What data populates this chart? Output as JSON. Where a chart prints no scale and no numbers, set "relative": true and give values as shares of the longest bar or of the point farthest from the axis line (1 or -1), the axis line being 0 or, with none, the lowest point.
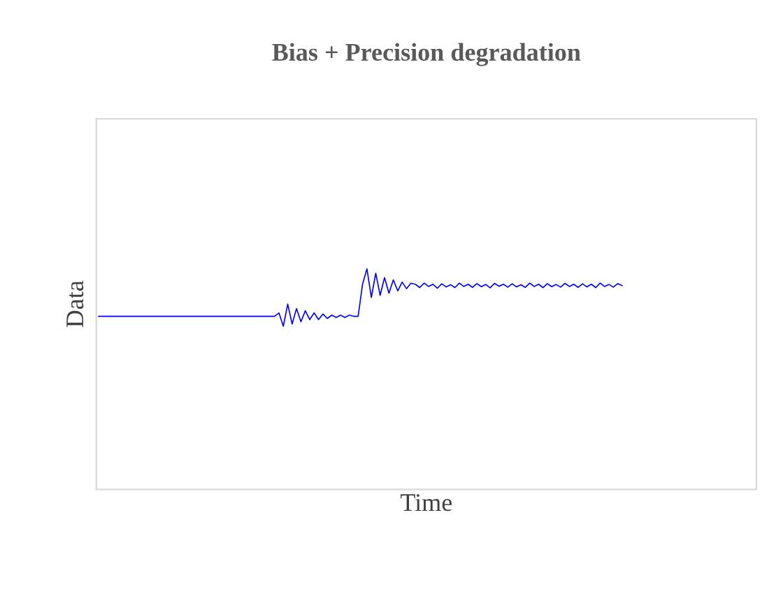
{
  "chart_data": {
    "type": "line",
    "title": "Bias + Precision degradation",
    "xlabel": "Time",
    "ylabel": "Data",
    "relative": true,
    "grid": false,
    "legend": false,
    "marker": "none",
    "line_style": "solid",
    "categories": [
      null,
      null,
      null,
      null,
      null,
      null,
      null,
      null,
      null,
      null,
      null,
      null,
      null,
      null,
      null,
      null,
      null,
      null,
      null,
      null,
      null,
      null,
      null,
      null,
      null,
      null,
      null,
      null,
      null,
      null,
      null,
      null,
      null,
      null,
      null,
      null,
      null,
      null,
      null,
      null,
      null,
      null,
      null,
      null,
      null,
      null,
      null,
      null,
      null,
      null,
      null,
      null,
      null,
      null,
      null,
      null,
      null,
      null,
      null,
      null,
      null,
      null,
      null,
      null,
      null,
      null,
      null,
      null,
      null,
      null,
      null,
      null,
      null,
      null,
      null,
      null,
      null,
      null,
      null,
      null,
      null,
      null,
      null,
      null,
      null,
      null,
      null,
      null,
      null,
      null,
      null,
      null,
      null,
      null,
      null,
      null,
      null,
      null,
      null,
      null,
      null,
      null,
      null,
      null,
      null,
      null,
      null,
      null,
      null,
      null,
      null,
      null,
      null,
      null,
      null,
      null,
      null,
      null,
      null,
      null,
      null,
      null,
      null,
      null,
      null,
      null,
      null,
      null,
      null,
      null,
      null,
      null,
      null,
      null,
      null,
      null,
      null,
      null,
      null,
      null,
      null,
      null,
      null,
      null,
      null,
      null,
      null,
      null,
      null,
      null
    ],
    "series": [
      {
        "color": "#0000ff",
        "values": [
          0.785,
          0.785,
          0.785,
          0.785,
          0.785,
          0.785,
          0.785,
          0.785,
          0.785,
          0.785,
          0.785,
          0.785,
          0.785,
          0.785,
          0.785,
          0.785,
          0.785,
          0.785,
          0.785,
          0.785,
          0.785,
          0.785,
          0.785,
          0.785,
          0.785,
          0.785,
          0.785,
          0.785,
          0.785,
          0.785,
          0.785,
          0.785,
          0.785,
          0.785,
          0.785,
          0.785,
          0.785,
          0.785,
          0.785,
          0.785,
          0.785,
          0.8,
          0.74,
          0.84,
          0.75,
          0.82,
          0.76,
          0.81,
          0.77,
          0.8,
          0.77,
          0.795,
          0.775,
          0.79,
          0.78,
          0.79,
          0.78,
          0.79,
          0.785,
          0.785,
          0.93,
          1,
          0.87,
          0.98,
          0.88,
          0.96,
          0.89,
          0.95,
          0.9,
          0.94,
          0.91,
          0.935,
          0.93,
          0.915,
          0.935,
          0.92,
          0.93,
          0.912,
          0.932,
          0.918,
          0.928,
          0.915,
          0.935,
          0.92,
          0.93,
          0.916,
          0.933,
          0.919,
          0.929,
          0.914,
          0.934,
          0.921,
          0.93,
          0.917,
          0.932,
          0.918,
          0.928,
          0.916,
          0.935,
          0.92,
          0.93,
          0.915,
          0.933,
          0.919,
          0.929,
          0.917,
          0.934,
          0.92,
          0.93,
          0.916,
          0.932,
          0.918,
          0.93,
          0.915,
          0.935,
          0.92,
          0.929,
          0.917,
          0.933,
          0.924,
          null,
          null,
          null,
          null,
          null,
          null,
          null,
          null,
          null,
          null,
          null,
          null,
          null,
          null,
          null,
          null,
          null,
          null,
          null,
          null,
          null,
          null,
          null,
          null,
          null,
          null,
          null,
          null,
          null,
          null
        ]
      }
    ]
  }
}
